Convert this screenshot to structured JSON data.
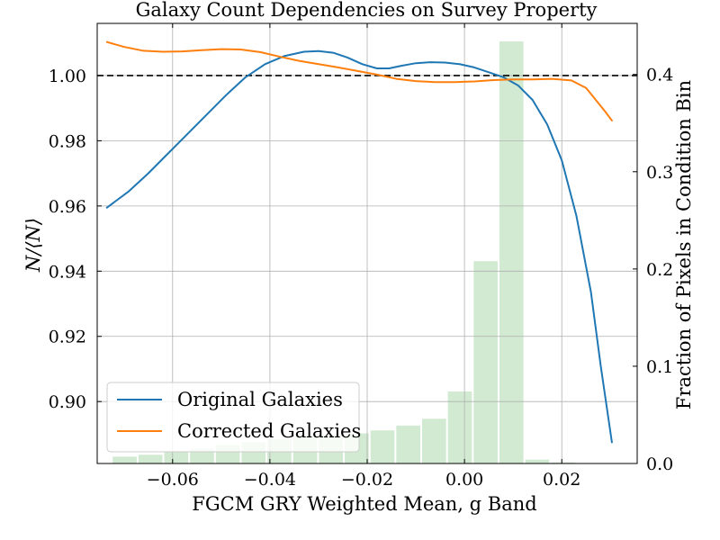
{
  "chart_data": {
    "type": "line",
    "title": "Galaxy Count Dependencies on Survey Property",
    "xlabel": "FGCM GRY Weighted Mean, g Band",
    "ylabel": "N/⟨N⟩",
    "ylabel_right": "Fraction of Pixels in Condition Bin",
    "xlim": [
      -0.0755,
      0.0355
    ],
    "ylim": [
      0.881,
      1.016
    ],
    "ylim_right": [
      0.0,
      0.4525
    ],
    "grid": true,
    "legend_position": "lower-left",
    "reference_line": 1.0,
    "x_ticks": [
      -0.06,
      -0.04,
      -0.02,
      0.0,
      0.02
    ],
    "x_tick_labels": [
      "−0.06",
      "−0.04",
      "−0.02",
      "0.00",
      "0.02"
    ],
    "y_ticks": [
      0.9,
      0.92,
      0.94,
      0.96,
      0.98,
      1.0
    ],
    "y_tick_labels": [
      "0.90",
      "0.92",
      "0.94",
      "0.96",
      "0.98",
      "1.00"
    ],
    "y2_ticks": [
      0.0,
      0.1,
      0.2,
      0.3,
      0.4
    ],
    "y2_tick_labels": [
      "0.0",
      "0.1",
      "0.2",
      "0.3",
      "0.4"
    ],
    "series": [
      {
        "name": "Original Galaxies",
        "color": "#1f77b4",
        "x": [
          -0.0735,
          -0.069,
          -0.065,
          -0.061,
          -0.057,
          -0.053,
          -0.049,
          -0.045,
          -0.041,
          -0.037,
          -0.033,
          -0.03,
          -0.027,
          -0.024,
          -0.021,
          -0.018,
          -0.0155,
          -0.013,
          -0.01,
          -0.007,
          -0.004,
          -0.001,
          0.002,
          0.005,
          0.008,
          0.011,
          0.014,
          0.017,
          0.02,
          0.023,
          0.026,
          0.028,
          0.0303
        ],
        "y": [
          0.9595,
          0.9645,
          0.97,
          0.976,
          0.982,
          0.988,
          0.994,
          0.9995,
          1.0035,
          1.006,
          1.0073,
          1.0075,
          1.007,
          1.0055,
          1.0035,
          1.0022,
          1.0022,
          1.003,
          1.0038,
          1.0041,
          1.004,
          1.0035,
          1.0025,
          1.001,
          0.9995,
          0.997,
          0.9925,
          0.985,
          0.974,
          0.957,
          0.9335,
          0.911,
          0.8875
        ]
      },
      {
        "name": "Corrected Galaxies",
        "color": "#ff7f0e",
        "x": [
          -0.0735,
          -0.07,
          -0.066,
          -0.062,
          -0.058,
          -0.054,
          -0.05,
          -0.046,
          -0.042,
          -0.038,
          -0.034,
          -0.03,
          -0.026,
          -0.022,
          -0.018,
          -0.014,
          -0.01,
          -0.006,
          -0.002,
          0.002,
          0.006,
          0.01,
          0.014,
          0.018,
          0.022,
          0.025,
          0.027,
          0.029,
          0.0303
        ],
        "y": [
          1.0103,
          1.0088,
          1.0076,
          1.0073,
          1.0074,
          1.0078,
          1.0081,
          1.008,
          1.0072,
          1.0058,
          1.0045,
          1.0035,
          1.0025,
          1.0014,
          1.0003,
          0.999,
          0.9983,
          0.998,
          0.998,
          0.9982,
          0.9986,
          0.9988,
          0.9988,
          0.999,
          0.9985,
          0.9962,
          0.9925,
          0.9888,
          0.9862
        ]
      }
    ],
    "histogram": {
      "color": "#2ca02c",
      "opacity": 0.22,
      "axis": "right",
      "bin_edges": [
        -0.0725,
        -0.0672,
        -0.0619,
        -0.0566,
        -0.0513,
        -0.046,
        -0.0407,
        -0.0354,
        -0.0301,
        -0.0248,
        -0.0195,
        -0.0142,
        -0.0089,
        -0.0036,
        0.0017,
        0.007,
        0.0123,
        0.0176,
        0.0229,
        0.0282,
        0.0335
      ],
      "values": [
        0.007,
        0.009,
        0.012,
        0.015,
        0.019,
        0.022,
        0.025,
        0.028,
        0.03,
        0.031,
        0.034,
        0.039,
        0.046,
        0.074,
        0.208,
        0.434,
        0.004,
        0.001,
        0.0,
        0.0
      ]
    }
  }
}
